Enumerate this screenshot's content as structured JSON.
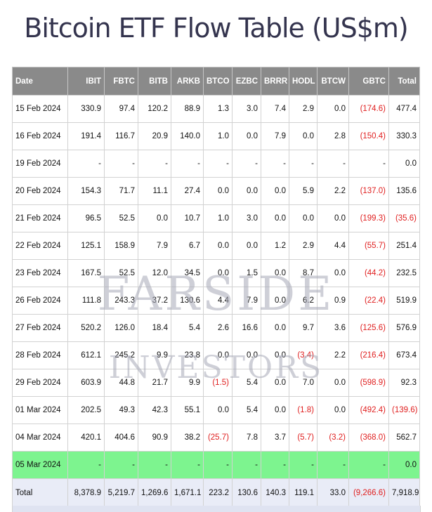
{
  "title": "Bitcoin ETF Flow Table (US$m)",
  "watermark": {
    "line1": "FARSIDE",
    "line2": "INVESTORS"
  },
  "columns": [
    "Date",
    "IBIT",
    "FBTC",
    "BITB",
    "ARKB",
    "BTCO",
    "EZBC",
    "BRRR",
    "HODL",
    "BTCW",
    "GBTC",
    "Total"
  ],
  "rows": [
    [
      "15 Feb 2024",
      "330.9",
      "97.4",
      "120.2",
      "88.9",
      "1.3",
      "3.0",
      "7.4",
      "2.9",
      "0.0",
      "(174.6)",
      "477.4"
    ],
    [
      "16 Feb 2024",
      "191.4",
      "116.7",
      "20.9",
      "140.0",
      "1.0",
      "0.0",
      "7.9",
      "0.0",
      "2.8",
      "(150.4)",
      "330.3"
    ],
    [
      "19 Feb 2024",
      "-",
      "-",
      "-",
      "-",
      "-",
      "-",
      "-",
      "-",
      "-",
      "-",
      "0.0"
    ],
    [
      "20 Feb 2024",
      "154.3",
      "71.7",
      "11.1",
      "27.4",
      "0.0",
      "0.0",
      "0.0",
      "5.9",
      "2.2",
      "(137.0)",
      "135.6"
    ],
    [
      "21 Feb 2024",
      "96.5",
      "52.5",
      "0.0",
      "10.7",
      "1.0",
      "3.0",
      "0.0",
      "0.0",
      "0.0",
      "(199.3)",
      "(35.6)"
    ],
    [
      "22 Feb 2024",
      "125.1",
      "158.9",
      "7.9",
      "6.7",
      "0.0",
      "0.0",
      "1.2",
      "2.9",
      "4.4",
      "(55.7)",
      "251.4"
    ],
    [
      "23 Feb 2024",
      "167.5",
      "52.5",
      "12.0",
      "34.5",
      "0.0",
      "1.5",
      "0.0",
      "8.7",
      "0.0",
      "(44.2)",
      "232.5"
    ],
    [
      "26 Feb 2024",
      "111.8",
      "243.3",
      "37.2",
      "130.6",
      "4.4",
      "7.9",
      "0.0",
      "6.2",
      "0.9",
      "(22.4)",
      "519.9"
    ],
    [
      "27 Feb 2024",
      "520.2",
      "126.0",
      "18.4",
      "5.4",
      "2.6",
      "16.6",
      "0.0",
      "9.7",
      "3.6",
      "(125.6)",
      "576.9"
    ],
    [
      "28 Feb 2024",
      "612.1",
      "245.2",
      "9.9",
      "23.8",
      "0.0",
      "0.0",
      "0.0",
      "(3.4)",
      "2.2",
      "(216.4)",
      "673.4"
    ],
    [
      "29 Feb 2024",
      "603.9",
      "44.8",
      "21.7",
      "9.9",
      "(1.5)",
      "5.4",
      "0.0",
      "7.0",
      "0.0",
      "(598.9)",
      "92.3"
    ],
    [
      "01 Mar 2024",
      "202.5",
      "49.3",
      "42.3",
      "55.1",
      "0.0",
      "5.4",
      "0.0",
      "(1.8)",
      "0.0",
      "(492.4)",
      "(139.6)"
    ],
    [
      "04 Mar 2024",
      "420.1",
      "404.6",
      "90.9",
      "38.2",
      "(25.7)",
      "7.8",
      "3.7",
      "(5.7)",
      "(3.2)",
      "(368.0)",
      "562.7"
    ],
    [
      "05 Mar 2024",
      "-",
      "-",
      "-",
      "-",
      "-",
      "-",
      "-",
      "-",
      "-",
      "-",
      "0.0"
    ]
  ],
  "highlighted_row": "05 Mar 2024",
  "total_row": [
    "Total",
    "8,378.9",
    "5,219.7",
    "1,269.6",
    "1,671.1",
    "223.2",
    "130.6",
    "140.3",
    "119.1",
    "33.0",
    "(9,266.6)",
    "7,918.9"
  ],
  "colors": {
    "header_bg": "#8a8a8a",
    "negative": "#e02020",
    "highlight_row": "#7df48f",
    "total_row": "#e9ecf7",
    "title": "#34344e"
  }
}
